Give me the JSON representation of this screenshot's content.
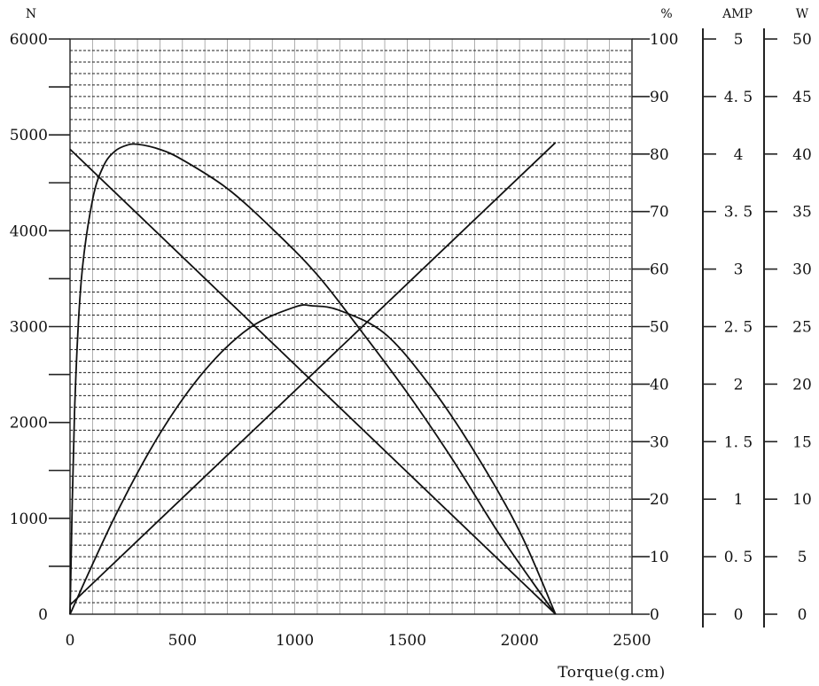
{
  "chart_data": {
    "type": "line",
    "title": "",
    "xlabel": "Torque(g.cm)",
    "x_ticks": [
      "0",
      "500",
      "1000",
      "1500",
      "2000",
      "2500"
    ],
    "xlim": [
      0,
      2500
    ],
    "axes": {
      "speed": {
        "unit": "N",
        "range": [
          0,
          6000
        ],
        "ticks": [
          "0",
          "1000",
          "2000",
          "3000",
          "4000",
          "5000",
          "6000"
        ]
      },
      "efficiency": {
        "unit": "%",
        "range": [
          0,
          100
        ],
        "ticks": [
          "0",
          "10",
          "20",
          "30",
          "40",
          "50",
          "60",
          "70",
          "80",
          "90",
          "100"
        ]
      },
      "current": {
        "unit": "AMP",
        "range": [
          0,
          5
        ],
        "ticks": [
          "0",
          "0.5",
          "1",
          "1.5",
          "2",
          "2.5",
          "3",
          "3.5",
          "4",
          "4.5",
          "5"
        ]
      },
      "power": {
        "unit": "W",
        "range": [
          0,
          50
        ],
        "ticks": [
          "0",
          "5",
          "10",
          "15",
          "20",
          "25",
          "30",
          "35",
          "40",
          "45",
          "50"
        ]
      }
    },
    "grid": true,
    "series": [
      {
        "axis": "speed",
        "x": [
          0,
          2160
        ],
        "y": [
          4850,
          0
        ]
      },
      {
        "axis": "current",
        "x": [
          0,
          2160
        ],
        "y": [
          0.08,
          4.1
        ]
      },
      {
        "axis": "efficiency",
        "x": [
          0,
          20,
          50,
          100,
          150,
          200,
          250,
          300,
          400,
          500,
          700,
          900,
          1100,
          1300,
          1500,
          1700,
          1900,
          2050,
          2160
        ],
        "y": [
          0,
          35,
          58,
          72,
          78,
          80.5,
          81.5,
          81.7,
          80.8,
          79,
          74,
          67,
          59,
          49,
          38.5,
          27,
          14.5,
          6,
          0
        ]
      },
      {
        "axis": "power",
        "x": [
          0,
          200,
          400,
          600,
          800,
          1000,
          1080,
          1200,
          1400,
          1600,
          1800,
          2000,
          2160
        ],
        "y": [
          0,
          8.5,
          15.7,
          21.2,
          24.9,
          26.7,
          26.8,
          26.4,
          24.4,
          19.9,
          14.1,
          7.2,
          0
        ]
      }
    ]
  }
}
